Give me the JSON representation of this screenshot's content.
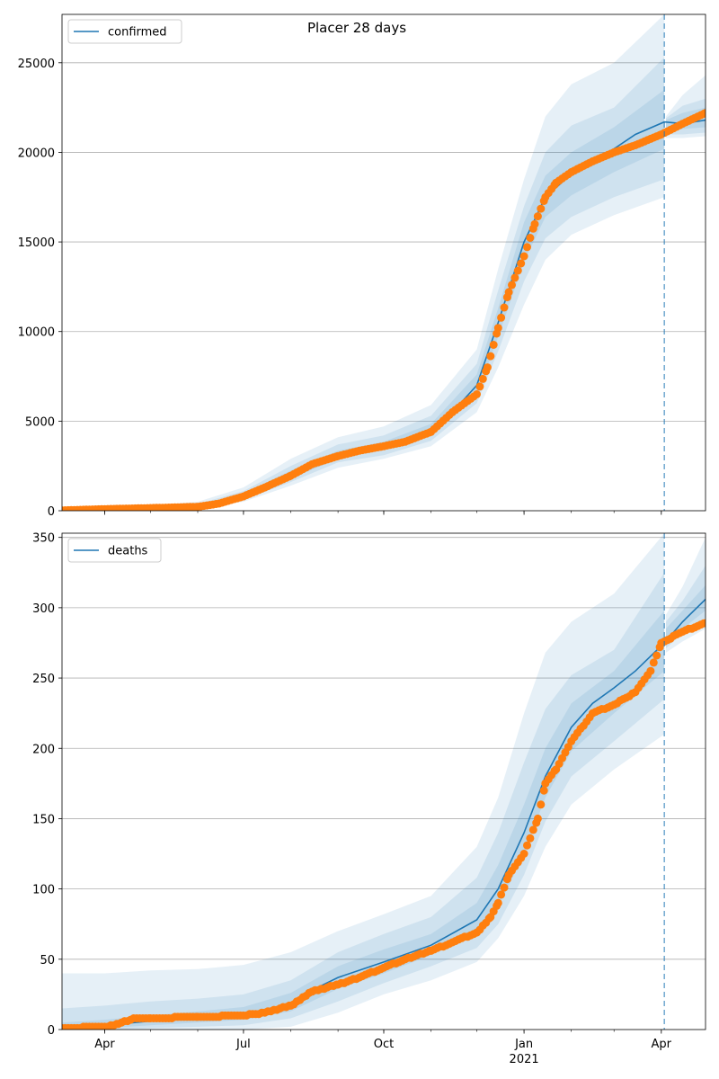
{
  "figure": {
    "title": "Placer 28 days"
  },
  "colors": {
    "model": "#1f77b4",
    "observed": "#ff7f0e",
    "band": "#1f77b4",
    "forecast_line": "#1f77b4",
    "grid": "#b0b0b0"
  },
  "chart_data": [
    {
      "type": "line",
      "panel": "top",
      "legend": [
        "confirmed"
      ],
      "legend_position": "upper-left",
      "x_ticks": [
        {
          "label": "Apr",
          "date": "2020-04-01"
        },
        {
          "label": "Jul",
          "date": "2020-07-01"
        },
        {
          "label": "Oct",
          "date": "2020-10-01"
        },
        {
          "label": "Jan",
          "date": "2021-01-01"
        },
        {
          "label": "Apr",
          "date": "2021-04-01"
        }
      ],
      "x_range": [
        "2020-03-04",
        "2021-04-30"
      ],
      "year_label": "",
      "ylim": [
        0,
        27700
      ],
      "y_ticks": [
        0,
        5000,
        10000,
        15000,
        20000,
        25000
      ],
      "y_grid": true,
      "forecast_start": "2021-04-03",
      "model_median": [
        [
          "2020-03-04",
          30
        ],
        [
          "2020-04-01",
          80
        ],
        [
          "2020-05-01",
          130
        ],
        [
          "2020-06-01",
          250
        ],
        [
          "2020-07-01",
          800
        ],
        [
          "2020-07-15",
          1300
        ],
        [
          "2020-08-01",
          2000
        ],
        [
          "2020-08-15",
          2600
        ],
        [
          "2020-09-01",
          3100
        ],
        [
          "2020-09-15",
          3400
        ],
        [
          "2020-10-01",
          3600
        ],
        [
          "2020-10-15",
          3900
        ],
        [
          "2020-11-01",
          4500
        ],
        [
          "2020-11-15",
          5500
        ],
        [
          "2020-12-01",
          7000
        ],
        [
          "2020-12-15",
          10500
        ],
        [
          "2021-01-01",
          15000
        ],
        [
          "2021-01-15",
          17500
        ],
        [
          "2021-02-01",
          18800
        ],
        [
          "2021-02-15",
          19500
        ],
        [
          "2021-03-01",
          20200
        ],
        [
          "2021-03-15",
          21000
        ],
        [
          "2021-04-03",
          21700
        ],
        [
          "2021-04-15",
          21600
        ],
        [
          "2021-04-30",
          21800
        ]
      ],
      "band_95": [
        [
          "2020-03-04",
          0,
          80
        ],
        [
          "2020-04-01",
          30,
          200
        ],
        [
          "2020-05-01",
          60,
          300
        ],
        [
          "2020-06-01",
          120,
          500
        ],
        [
          "2020-07-01",
          500,
          1300
        ],
        [
          "2020-08-01",
          1400,
          2900
        ],
        [
          "2020-09-01",
          2400,
          4100
        ],
        [
          "2020-10-01",
          2900,
          4700
        ],
        [
          "2020-11-01",
          3600,
          5900
        ],
        [
          "2020-12-01",
          5500,
          9000
        ],
        [
          "2020-12-15",
          8000,
          13500
        ],
        [
          "2021-01-01",
          11500,
          18500
        ],
        [
          "2021-01-15",
          14000,
          22000
        ],
        [
          "2021-02-01",
          15400,
          23800
        ],
        [
          "2021-03-01",
          16500,
          25000
        ],
        [
          "2021-04-03",
          17500,
          27700
        ],
        [
          "2021-04-04",
          20800,
          22000
        ],
        [
          "2021-04-15",
          20800,
          23200
        ],
        [
          "2021-04-30",
          20900,
          24300
        ]
      ],
      "band_80": [
        [
          "2020-03-04",
          10,
          55
        ],
        [
          "2020-04-01",
          50,
          150
        ],
        [
          "2020-05-01",
          80,
          230
        ],
        [
          "2020-06-01",
          170,
          380
        ],
        [
          "2020-07-01",
          600,
          1100
        ],
        [
          "2020-08-01",
          1600,
          2500
        ],
        [
          "2020-09-01",
          2700,
          3700
        ],
        [
          "2020-10-01",
          3100,
          4200
        ],
        [
          "2020-11-01",
          3900,
          5300
        ],
        [
          "2020-12-01",
          6000,
          8200
        ],
        [
          "2020-12-15",
          8900,
          12300
        ],
        [
          "2021-01-01",
          12800,
          17000
        ],
        [
          "2021-01-15",
          15200,
          20000
        ],
        [
          "2021-02-01",
          16400,
          21500
        ],
        [
          "2021-03-01",
          17500,
          22500
        ],
        [
          "2021-04-03",
          18500,
          25300
        ],
        [
          "2021-04-04",
          21000,
          21900
        ],
        [
          "2021-04-15",
          21000,
          22600
        ],
        [
          "2021-04-30",
          21100,
          23000
        ]
      ],
      "band_50": [
        [
          "2020-03-04",
          20,
          40
        ],
        [
          "2020-04-01",
          65,
          110
        ],
        [
          "2020-05-01",
          100,
          180
        ],
        [
          "2020-06-01",
          200,
          310
        ],
        [
          "2020-07-01",
          700,
          950
        ],
        [
          "2020-08-01",
          1800,
          2250
        ],
        [
          "2020-09-01",
          2900,
          3350
        ],
        [
          "2020-10-01",
          3400,
          3850
        ],
        [
          "2020-11-01",
          4200,
          4850
        ],
        [
          "2020-12-01",
          6500,
          7600
        ],
        [
          "2020-12-15",
          9700,
          11300
        ],
        [
          "2021-01-01",
          13900,
          16100
        ],
        [
          "2021-01-15",
          16400,
          18700
        ],
        [
          "2021-02-01",
          17600,
          20000
        ],
        [
          "2021-03-01",
          18900,
          21400
        ],
        [
          "2021-04-03",
          20200,
          23500
        ],
        [
          "2021-04-04",
          21200,
          21800
        ],
        [
          "2021-04-15",
          21300,
          22200
        ],
        [
          "2021-04-30",
          21400,
          22500
        ]
      ],
      "observed": [
        [
          "2020-03-04",
          20
        ],
        [
          "2020-04-01",
          90
        ],
        [
          "2020-05-01",
          150
        ],
        [
          "2020-06-01",
          220
        ],
        [
          "2020-06-15",
          400
        ],
        [
          "2020-07-01",
          800
        ],
        [
          "2020-07-15",
          1300
        ],
        [
          "2020-08-01",
          1950
        ],
        [
          "2020-08-15",
          2600
        ],
        [
          "2020-09-01",
          3050
        ],
        [
          "2020-09-15",
          3350
        ],
        [
          "2020-10-01",
          3600
        ],
        [
          "2020-10-15",
          3850
        ],
        [
          "2020-11-01",
          4400
        ],
        [
          "2020-11-15",
          5500
        ],
        [
          "2020-12-01",
          6500
        ],
        [
          "2020-12-08",
          8000
        ],
        [
          "2020-12-15",
          10200
        ],
        [
          "2020-12-22",
          12200
        ],
        [
          "2021-01-01",
          14200
        ],
        [
          "2021-01-08",
          16000
        ],
        [
          "2021-01-15",
          17500
        ],
        [
          "2021-01-22",
          18300
        ],
        [
          "2021-02-01",
          18900
        ],
        [
          "2021-02-15",
          19500
        ],
        [
          "2021-03-01",
          20000
        ],
        [
          "2021-03-15",
          20400
        ],
        [
          "2021-04-01",
          21000
        ],
        [
          "2021-04-15",
          21600
        ],
        [
          "2021-04-30",
          22200
        ]
      ]
    },
    {
      "type": "line",
      "panel": "bottom",
      "legend": [
        "deaths"
      ],
      "legend_position": "upper-left",
      "x_ticks": [
        {
          "label": "Apr",
          "date": "2020-04-01"
        },
        {
          "label": "Jul",
          "date": "2020-07-01"
        },
        {
          "label": "Oct",
          "date": "2020-10-01"
        },
        {
          "label": "Jan",
          "date": "2021-01-01"
        },
        {
          "label": "Apr",
          "date": "2021-04-01"
        }
      ],
      "x_range": [
        "2020-03-04",
        "2021-04-30"
      ],
      "year_label": "2021",
      "ylim": [
        0,
        353
      ],
      "y_ticks": [
        0,
        50,
        100,
        150,
        200,
        250,
        300,
        350
      ],
      "y_grid": true,
      "forecast_start": "2021-04-03",
      "model_median": [
        [
          "2020-03-04",
          2
        ],
        [
          "2020-04-01",
          3
        ],
        [
          "2020-05-01",
          6
        ],
        [
          "2020-06-01",
          8
        ],
        [
          "2020-07-01",
          11
        ],
        [
          "2020-08-01",
          18
        ],
        [
          "2020-08-15",
          28
        ],
        [
          "2020-09-01",
          37
        ],
        [
          "2020-10-01",
          48
        ],
        [
          "2020-11-01",
          60
        ],
        [
          "2020-12-01",
          78
        ],
        [
          "2020-12-15",
          100
        ],
        [
          "2021-01-01",
          140
        ],
        [
          "2021-01-15",
          180
        ],
        [
          "2021-02-01",
          215
        ],
        [
          "2021-02-15",
          232
        ],
        [
          "2021-03-01",
          243
        ],
        [
          "2021-03-15",
          255
        ],
        [
          "2021-04-03",
          275
        ],
        [
          "2021-04-15",
          290
        ],
        [
          "2021-04-30",
          306
        ]
      ],
      "band_95": [
        [
          "2020-03-04",
          0,
          40
        ],
        [
          "2020-04-01",
          0,
          40
        ],
        [
          "2020-05-01",
          0,
          42
        ],
        [
          "2020-06-01",
          0,
          43
        ],
        [
          "2020-07-01",
          0,
          46
        ],
        [
          "2020-08-01",
          2,
          55
        ],
        [
          "2020-09-01",
          12,
          70
        ],
        [
          "2020-10-01",
          25,
          82
        ],
        [
          "2020-11-01",
          35,
          95
        ],
        [
          "2020-12-01",
          48,
          130
        ],
        [
          "2020-12-15",
          65,
          165
        ],
        [
          "2021-01-01",
          95,
          225
        ],
        [
          "2021-01-15",
          130,
          268
        ],
        [
          "2021-02-01",
          160,
          290
        ],
        [
          "2021-03-01",
          185,
          310
        ],
        [
          "2021-04-03",
          210,
          353
        ],
        [
          "2021-04-04",
          268,
          295
        ],
        [
          "2021-04-15",
          276,
          315
        ],
        [
          "2021-04-30",
          285,
          350
        ]
      ],
      "band_80": [
        [
          "2020-03-04",
          0,
          15
        ],
        [
          "2020-04-01",
          0,
          17
        ],
        [
          "2020-05-01",
          1,
          20
        ],
        [
          "2020-06-01",
          2,
          22
        ],
        [
          "2020-07-01",
          3,
          25
        ],
        [
          "2020-08-01",
          8,
          35
        ],
        [
          "2020-09-01",
          20,
          55
        ],
        [
          "2020-10-01",
          33,
          68
        ],
        [
          "2020-11-01",
          45,
          80
        ],
        [
          "2020-12-01",
          58,
          108
        ],
        [
          "2020-12-15",
          75,
          140
        ],
        [
          "2021-01-01",
          110,
          190
        ],
        [
          "2021-01-15",
          148,
          228
        ],
        [
          "2021-02-01",
          180,
          252
        ],
        [
          "2021-03-01",
          205,
          270
        ],
        [
          "2021-04-03",
          235,
          325
        ],
        [
          "2021-04-04",
          271,
          290
        ],
        [
          "2021-04-15",
          282,
          305
        ],
        [
          "2021-04-30",
          293,
          330
        ]
      ],
      "band_50": [
        [
          "2020-03-04",
          1,
          5
        ],
        [
          "2020-04-01",
          1,
          7
        ],
        [
          "2020-05-01",
          3,
          10
        ],
        [
          "2020-06-01",
          5,
          13
        ],
        [
          "2020-07-01",
          7,
          16
        ],
        [
          "2020-08-01",
          13,
          26
        ],
        [
          "2020-09-01",
          29,
          45
        ],
        [
          "2020-10-01",
          40,
          57
        ],
        [
          "2020-11-01",
          53,
          68
        ],
        [
          "2020-12-01",
          68,
          90
        ],
        [
          "2020-12-15",
          87,
          117
        ],
        [
          "2021-01-01",
          125,
          160
        ],
        [
          "2021-01-15",
          165,
          200
        ],
        [
          "2021-02-01",
          198,
          232
        ],
        [
          "2021-03-01",
          225,
          255
        ],
        [
          "2021-04-03",
          255,
          298
        ],
        [
          "2021-04-04",
          273,
          285
        ],
        [
          "2021-04-15",
          285,
          298
        ],
        [
          "2021-04-30",
          298,
          316
        ]
      ],
      "observed": [
        [
          "2020-03-04",
          1
        ],
        [
          "2020-04-01",
          2
        ],
        [
          "2020-04-10",
          4
        ],
        [
          "2020-04-20",
          8
        ],
        [
          "2020-05-01",
          8
        ],
        [
          "2020-06-01",
          9
        ],
        [
          "2020-07-01",
          10
        ],
        [
          "2020-07-15",
          12
        ],
        [
          "2020-08-01",
          17
        ],
        [
          "2020-08-15",
          27
        ],
        [
          "2020-09-01",
          32
        ],
        [
          "2020-09-15",
          37
        ],
        [
          "2020-10-01",
          44
        ],
        [
          "2020-10-15",
          50
        ],
        [
          "2020-11-01",
          56
        ],
        [
          "2020-11-15",
          62
        ],
        [
          "2020-12-01",
          69
        ],
        [
          "2020-12-10",
          80
        ],
        [
          "2020-12-15",
          90
        ],
        [
          "2020-12-22",
          110
        ],
        [
          "2021-01-01",
          125
        ],
        [
          "2021-01-10",
          150
        ],
        [
          "2021-01-15",
          175
        ],
        [
          "2021-01-22",
          185
        ],
        [
          "2021-02-01",
          205
        ],
        [
          "2021-02-15",
          225
        ],
        [
          "2021-03-01",
          231
        ],
        [
          "2021-03-15",
          240
        ],
        [
          "2021-03-25",
          255
        ],
        [
          "2021-04-01",
          275
        ],
        [
          "2021-04-15",
          283
        ],
        [
          "2021-04-30",
          289
        ]
      ]
    }
  ]
}
